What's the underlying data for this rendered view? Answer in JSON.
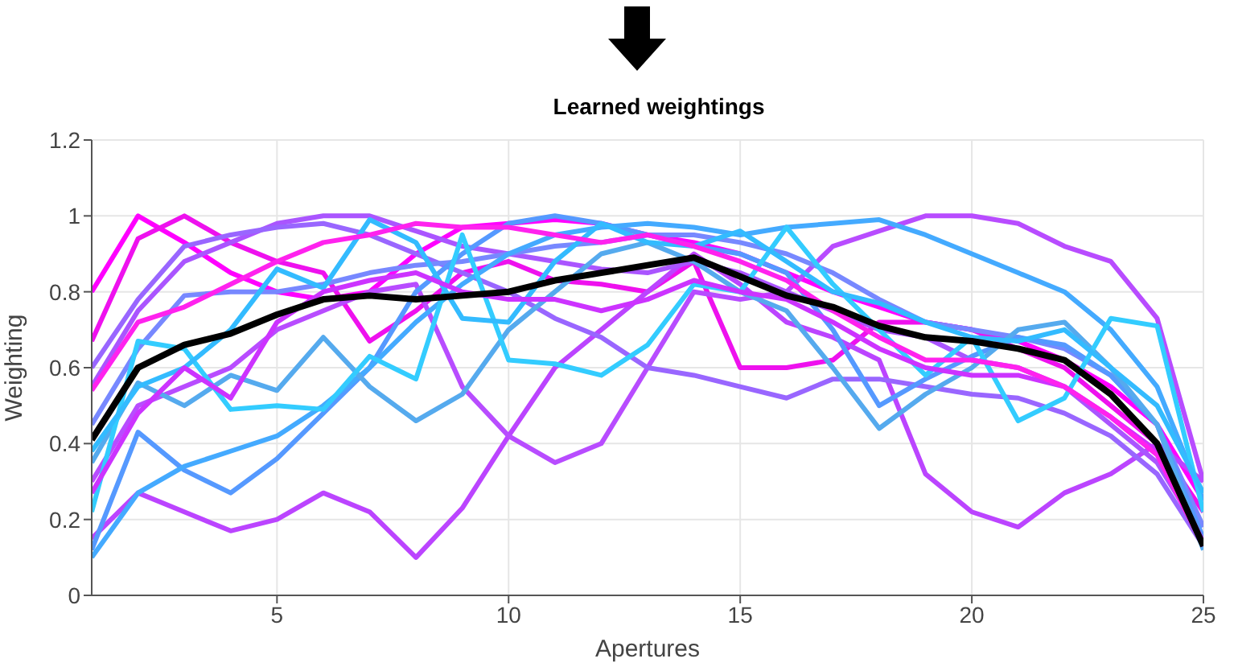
{
  "chart_data": {
    "type": "line",
    "title": "Learned weightings",
    "xlabel": "Apertures",
    "ylabel": "Weighting",
    "x": [
      1,
      2,
      3,
      4,
      5,
      6,
      7,
      8,
      9,
      10,
      11,
      12,
      13,
      14,
      15,
      16,
      17,
      18,
      19,
      20,
      21,
      22,
      23,
      24,
      25
    ],
    "xlim": [
      1,
      25
    ],
    "xticks": [
      5,
      10,
      15,
      20,
      25
    ],
    "ylim": [
      0,
      1.2
    ],
    "yticks": [
      0,
      0.2,
      0.4,
      0.6,
      0.8,
      1,
      1.2
    ],
    "grid": true,
    "marker": "none",
    "line_style": "solid",
    "series": [
      {
        "color": "#ff00ff",
        "values": [
          0.8,
          1.0,
          0.93,
          0.85,
          0.8,
          0.78,
          0.8,
          0.9,
          0.97,
          0.98,
          0.99,
          0.98,
          0.95,
          0.93,
          0.9,
          0.85,
          0.8,
          0.76,
          0.72,
          0.7,
          0.67,
          0.62,
          0.55,
          0.45,
          0.25
        ]
      },
      {
        "color": "#ee11ee",
        "values": [
          0.67,
          0.94,
          1.0,
          0.93,
          0.88,
          0.85,
          0.67,
          0.75,
          0.85,
          0.88,
          0.83,
          0.82,
          0.8,
          0.88,
          0.6,
          0.6,
          0.62,
          0.72,
          0.72,
          0.7,
          0.65,
          0.6,
          0.5,
          0.4,
          0.22
        ]
      },
      {
        "color": "#bb44ff",
        "values": [
          0.15,
          0.27,
          0.22,
          0.17,
          0.2,
          0.27,
          0.22,
          0.1,
          0.23,
          0.42,
          0.6,
          0.7,
          0.8,
          0.9,
          0.82,
          0.72,
          0.68,
          0.62,
          0.32,
          0.22,
          0.18,
          0.27,
          0.32,
          0.4,
          0.3
        ]
      },
      {
        "color": "#b84cff",
        "values": [
          0.3,
          0.5,
          0.55,
          0.6,
          0.7,
          0.75,
          0.8,
          0.82,
          0.55,
          0.42,
          0.35,
          0.4,
          0.6,
          0.8,
          0.78,
          0.8,
          0.92,
          0.96,
          1.0,
          1.0,
          0.98,
          0.92,
          0.88,
          0.73,
          0.3
        ]
      },
      {
        "color": "#aa55ff",
        "values": [
          0.55,
          0.75,
          0.88,
          0.93,
          0.98,
          1.0,
          1.0,
          0.96,
          0.92,
          0.9,
          0.88,
          0.86,
          0.85,
          0.88,
          0.85,
          0.8,
          0.75,
          0.7,
          0.68,
          0.62,
          0.6,
          0.55,
          0.45,
          0.35,
          0.15
        ]
      },
      {
        "color": "#9966ff",
        "values": [
          0.6,
          0.78,
          0.92,
          0.95,
          0.97,
          0.98,
          0.95,
          0.9,
          0.85,
          0.8,
          0.73,
          0.68,
          0.6,
          0.58,
          0.55,
          0.52,
          0.57,
          0.57,
          0.55,
          0.53,
          0.52,
          0.48,
          0.42,
          0.32,
          0.13
        ]
      },
      {
        "color": "#7788ff",
        "values": [
          0.45,
          0.65,
          0.79,
          0.8,
          0.8,
          0.82,
          0.85,
          0.87,
          0.88,
          0.9,
          0.92,
          0.93,
          0.95,
          0.95,
          0.93,
          0.9,
          0.85,
          0.78,
          0.72,
          0.7,
          0.68,
          0.65,
          0.58,
          0.45,
          0.18
        ]
      },
      {
        "color": "#5599ff",
        "values": [
          0.12,
          0.43,
          0.33,
          0.27,
          0.36,
          0.48,
          0.6,
          0.8,
          0.9,
          0.98,
          1.0,
          0.98,
          0.95,
          0.92,
          0.9,
          0.85,
          0.7,
          0.5,
          0.57,
          0.63,
          0.68,
          0.66,
          0.58,
          0.45,
          0.15
        ]
      },
      {
        "color": "#44aaff",
        "values": [
          0.1,
          0.27,
          0.34,
          0.38,
          0.42,
          0.5,
          0.6,
          0.72,
          0.82,
          0.9,
          0.95,
          0.97,
          0.98,
          0.97,
          0.95,
          0.97,
          0.98,
          0.99,
          0.95,
          0.9,
          0.85,
          0.8,
          0.7,
          0.55,
          0.25
        ]
      },
      {
        "color": "#55aaee",
        "values": [
          0.35,
          0.56,
          0.5,
          0.58,
          0.54,
          0.68,
          0.55,
          0.46,
          0.53,
          0.7,
          0.8,
          0.9,
          0.93,
          0.88,
          0.8,
          0.75,
          0.6,
          0.44,
          0.53,
          0.6,
          0.7,
          0.72,
          0.6,
          0.45,
          0.12
        ]
      },
      {
        "color": "#33ccff",
        "values": [
          0.22,
          0.67,
          0.65,
          0.49,
          0.5,
          0.49,
          0.63,
          0.57,
          0.95,
          0.62,
          0.61,
          0.58,
          0.66,
          0.82,
          0.8,
          0.97,
          0.82,
          0.7,
          0.58,
          0.68,
          0.46,
          0.52,
          0.73,
          0.71,
          0.22
        ]
      },
      {
        "color": "#33bbff",
        "values": [
          0.38,
          0.55,
          0.6,
          0.7,
          0.86,
          0.81,
          0.99,
          0.93,
          0.73,
          0.72,
          0.88,
          0.98,
          0.93,
          0.92,
          0.96,
          0.88,
          0.8,
          0.77,
          0.72,
          0.68,
          0.67,
          0.7,
          0.6,
          0.5,
          0.27
        ]
      },
      {
        "color": "#cc33ff",
        "values": [
          0.27,
          0.48,
          0.6,
          0.52,
          0.72,
          0.8,
          0.83,
          0.85,
          0.8,
          0.78,
          0.78,
          0.75,
          0.78,
          0.83,
          0.8,
          0.78,
          0.72,
          0.65,
          0.6,
          0.58,
          0.58,
          0.55,
          0.47,
          0.38,
          0.14
        ]
      },
      {
        "color": "#ff22ee",
        "values": [
          0.54,
          0.72,
          0.76,
          0.82,
          0.88,
          0.93,
          0.95,
          0.98,
          0.97,
          0.97,
          0.95,
          0.93,
          0.95,
          0.92,
          0.88,
          0.83,
          0.75,
          0.68,
          0.62,
          0.62,
          0.6,
          0.55,
          0.47,
          0.37,
          0.13
        ]
      },
      {
        "color": "#000000",
        "values": [
          0.41,
          0.6,
          0.66,
          0.69,
          0.74,
          0.78,
          0.79,
          0.78,
          0.79,
          0.8,
          0.83,
          0.85,
          0.87,
          0.89,
          0.84,
          0.79,
          0.76,
          0.71,
          0.68,
          0.67,
          0.65,
          0.62,
          0.53,
          0.4,
          0.13
        ]
      }
    ]
  }
}
